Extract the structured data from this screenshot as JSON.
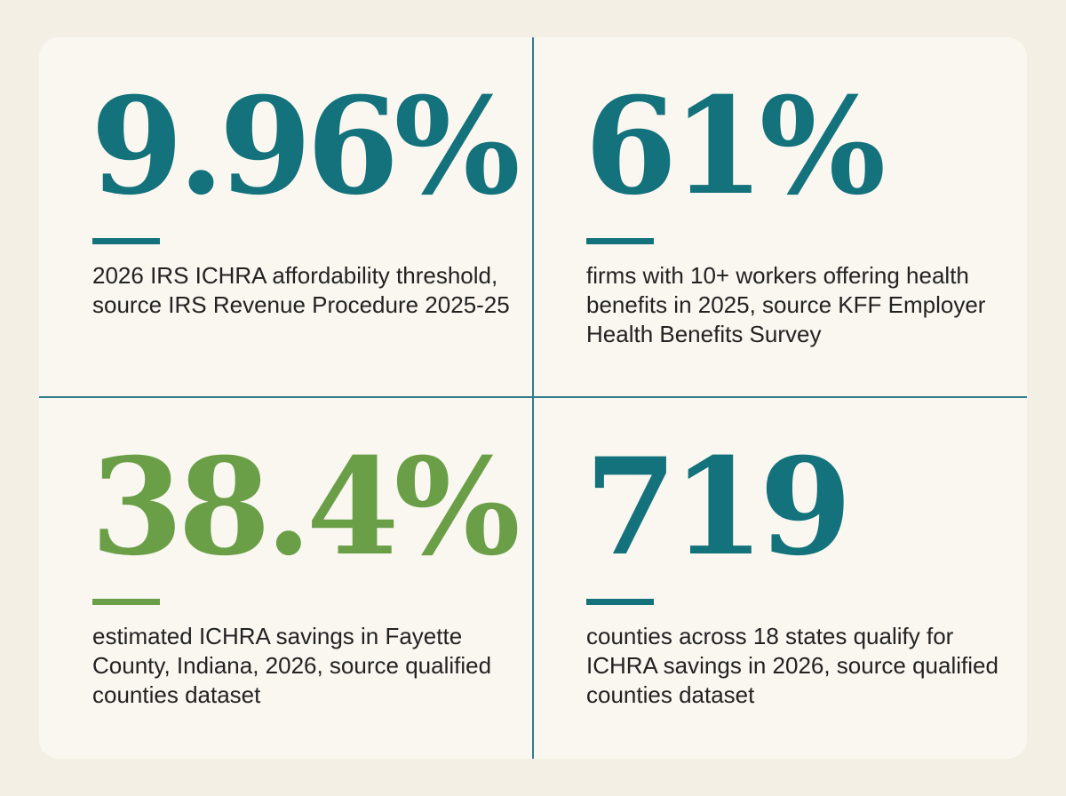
{
  "stats": [
    {
      "value": "9.96%",
      "caption": "2026 IRS ICHRA affordability threshold, source IRS Revenue Procedure 2025-25",
      "color": "#13727c"
    },
    {
      "value": "61%",
      "caption": "firms with 10+ workers offering health benefits in 2025, source KFF Employer Health Benefits Survey",
      "color": "#13727c"
    },
    {
      "value": "38.4%",
      "caption": "estimated ICHRA savings in Fayette County, Indiana, 2026, source qualified counties dataset",
      "color": "#6a9f48"
    },
    {
      "value": "719",
      "caption": "counties across 18 states qualify for ICHRA savings in 2026, source qualified counties dataset",
      "color": "#13727c"
    }
  ],
  "colors": {
    "background": "#f4efe4",
    "card": "#faf7f0",
    "divider": "#2f7d8c",
    "teal": "#13727c",
    "green": "#6a9f48",
    "text": "#222222"
  }
}
